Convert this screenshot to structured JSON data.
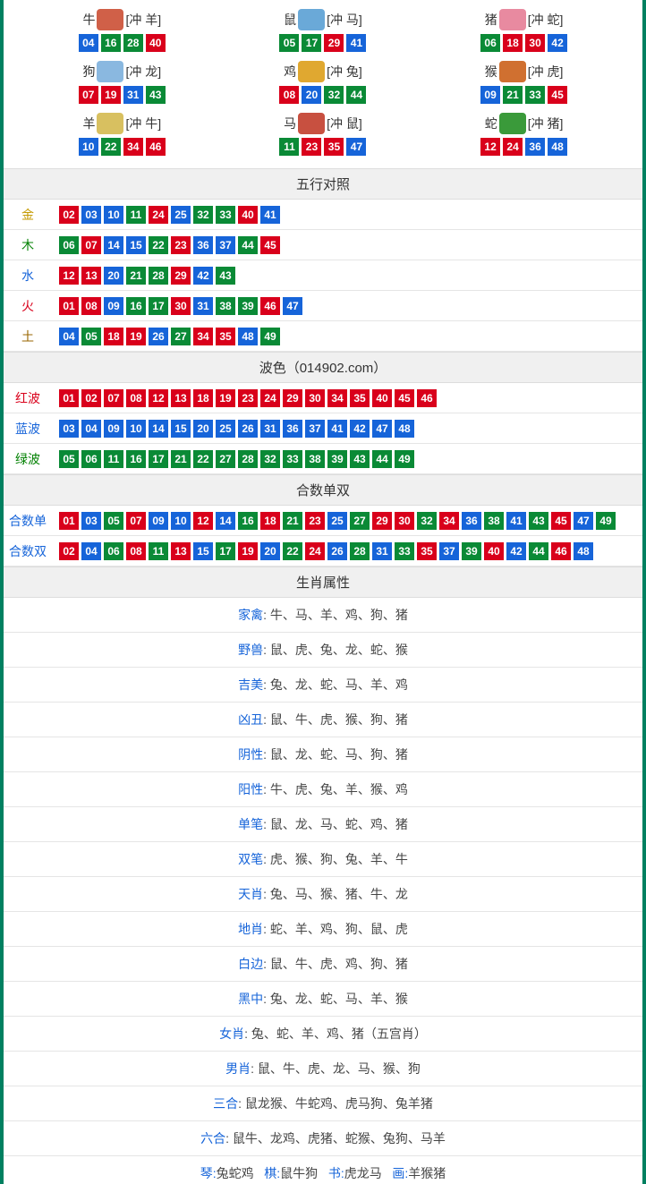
{
  "colors": {
    "red": "#d9001b",
    "green": "#0a8a36",
    "blue": "#1664d9",
    "border": "#008060",
    "label_gold": "#c49a00",
    "label_green": "#008000",
    "label_blue": "#1664d9",
    "label_red": "#d9001b",
    "label_brown": "#996600"
  },
  "zodiac_icon_colors": {
    "牛": "#d06048",
    "鼠": "#6aa9d8",
    "猪": "#e88aa0",
    "狗": "#8ab8e0",
    "鸡": "#e0a830",
    "猴": "#d07030",
    "羊": "#d8c060",
    "马": "#c85040",
    "蛇": "#3a9a3a"
  },
  "zodiac": [
    {
      "name": "牛",
      "chong": "[冲 羊]",
      "nums": [
        {
          "v": "04",
          "c": "blue"
        },
        {
          "v": "16",
          "c": "green"
        },
        {
          "v": "28",
          "c": "green"
        },
        {
          "v": "40",
          "c": "red"
        }
      ]
    },
    {
      "name": "鼠",
      "chong": "[冲 马]",
      "nums": [
        {
          "v": "05",
          "c": "green"
        },
        {
          "v": "17",
          "c": "green"
        },
        {
          "v": "29",
          "c": "red"
        },
        {
          "v": "41",
          "c": "blue"
        }
      ]
    },
    {
      "name": "猪",
      "chong": "[冲 蛇]",
      "nums": [
        {
          "v": "06",
          "c": "green"
        },
        {
          "v": "18",
          "c": "red"
        },
        {
          "v": "30",
          "c": "red"
        },
        {
          "v": "42",
          "c": "blue"
        }
      ]
    },
    {
      "name": "狗",
      "chong": "[冲 龙]",
      "nums": [
        {
          "v": "07",
          "c": "red"
        },
        {
          "v": "19",
          "c": "red"
        },
        {
          "v": "31",
          "c": "blue"
        },
        {
          "v": "43",
          "c": "green"
        }
      ]
    },
    {
      "name": "鸡",
      "chong": "[冲 兔]",
      "nums": [
        {
          "v": "08",
          "c": "red"
        },
        {
          "v": "20",
          "c": "blue"
        },
        {
          "v": "32",
          "c": "green"
        },
        {
          "v": "44",
          "c": "green"
        }
      ]
    },
    {
      "name": "猴",
      "chong": "[冲 虎]",
      "nums": [
        {
          "v": "09",
          "c": "blue"
        },
        {
          "v": "21",
          "c": "green"
        },
        {
          "v": "33",
          "c": "green"
        },
        {
          "v": "45",
          "c": "red"
        }
      ]
    },
    {
      "name": "羊",
      "chong": "[冲 牛]",
      "nums": [
        {
          "v": "10",
          "c": "blue"
        },
        {
          "v": "22",
          "c": "green"
        },
        {
          "v": "34",
          "c": "red"
        },
        {
          "v": "46",
          "c": "red"
        }
      ]
    },
    {
      "name": "马",
      "chong": "[冲 鼠]",
      "nums": [
        {
          "v": "11",
          "c": "green"
        },
        {
          "v": "23",
          "c": "red"
        },
        {
          "v": "35",
          "c": "red"
        },
        {
          "v": "47",
          "c": "blue"
        }
      ]
    },
    {
      "name": "蛇",
      "chong": "[冲 猪]",
      "nums": [
        {
          "v": "12",
          "c": "red"
        },
        {
          "v": "24",
          "c": "red"
        },
        {
          "v": "36",
          "c": "blue"
        },
        {
          "v": "48",
          "c": "blue"
        }
      ]
    }
  ],
  "sections": {
    "wuxing": {
      "title": "五行对照",
      "rows": [
        {
          "label": "金",
          "label_color": "#c49a00",
          "nums": [
            {
              "v": "02",
              "c": "red"
            },
            {
              "v": "03",
              "c": "blue"
            },
            {
              "v": "10",
              "c": "blue"
            },
            {
              "v": "11",
              "c": "green"
            },
            {
              "v": "24",
              "c": "red"
            },
            {
              "v": "25",
              "c": "blue"
            },
            {
              "v": "32",
              "c": "green"
            },
            {
              "v": "33",
              "c": "green"
            },
            {
              "v": "40",
              "c": "red"
            },
            {
              "v": "41",
              "c": "blue"
            }
          ]
        },
        {
          "label": "木",
          "label_color": "#008000",
          "nums": [
            {
              "v": "06",
              "c": "green"
            },
            {
              "v": "07",
              "c": "red"
            },
            {
              "v": "14",
              "c": "blue"
            },
            {
              "v": "15",
              "c": "blue"
            },
            {
              "v": "22",
              "c": "green"
            },
            {
              "v": "23",
              "c": "red"
            },
            {
              "v": "36",
              "c": "blue"
            },
            {
              "v": "37",
              "c": "blue"
            },
            {
              "v": "44",
              "c": "green"
            },
            {
              "v": "45",
              "c": "red"
            }
          ]
        },
        {
          "label": "水",
          "label_color": "#1664d9",
          "nums": [
            {
              "v": "12",
              "c": "red"
            },
            {
              "v": "13",
              "c": "red"
            },
            {
              "v": "20",
              "c": "blue"
            },
            {
              "v": "21",
              "c": "green"
            },
            {
              "v": "28",
              "c": "green"
            },
            {
              "v": "29",
              "c": "red"
            },
            {
              "v": "42",
              "c": "blue"
            },
            {
              "v": "43",
              "c": "green"
            }
          ]
        },
        {
          "label": "火",
          "label_color": "#d9001b",
          "nums": [
            {
              "v": "01",
              "c": "red"
            },
            {
              "v": "08",
              "c": "red"
            },
            {
              "v": "09",
              "c": "blue"
            },
            {
              "v": "16",
              "c": "green"
            },
            {
              "v": "17",
              "c": "green"
            },
            {
              "v": "30",
              "c": "red"
            },
            {
              "v": "31",
              "c": "blue"
            },
            {
              "v": "38",
              "c": "green"
            },
            {
              "v": "39",
              "c": "green"
            },
            {
              "v": "46",
              "c": "red"
            },
            {
              "v": "47",
              "c": "blue"
            }
          ]
        },
        {
          "label": "土",
          "label_color": "#996600",
          "nums": [
            {
              "v": "04",
              "c": "blue"
            },
            {
              "v": "05",
              "c": "green"
            },
            {
              "v": "18",
              "c": "red"
            },
            {
              "v": "19",
              "c": "red"
            },
            {
              "v": "26",
              "c": "blue"
            },
            {
              "v": "27",
              "c": "green"
            },
            {
              "v": "34",
              "c": "red"
            },
            {
              "v": "35",
              "c": "red"
            },
            {
              "v": "48",
              "c": "blue"
            },
            {
              "v": "49",
              "c": "green"
            }
          ]
        }
      ]
    },
    "bose": {
      "title": "波色（014902.com）",
      "rows": [
        {
          "label": "红波",
          "label_color": "#d9001b",
          "nums": [
            {
              "v": "01",
              "c": "red"
            },
            {
              "v": "02",
              "c": "red"
            },
            {
              "v": "07",
              "c": "red"
            },
            {
              "v": "08",
              "c": "red"
            },
            {
              "v": "12",
              "c": "red"
            },
            {
              "v": "13",
              "c": "red"
            },
            {
              "v": "18",
              "c": "red"
            },
            {
              "v": "19",
              "c": "red"
            },
            {
              "v": "23",
              "c": "red"
            },
            {
              "v": "24",
              "c": "red"
            },
            {
              "v": "29",
              "c": "red"
            },
            {
              "v": "30",
              "c": "red"
            },
            {
              "v": "34",
              "c": "red"
            },
            {
              "v": "35",
              "c": "red"
            },
            {
              "v": "40",
              "c": "red"
            },
            {
              "v": "45",
              "c": "red"
            },
            {
              "v": "46",
              "c": "red"
            }
          ]
        },
        {
          "label": "蓝波",
          "label_color": "#1664d9",
          "nums": [
            {
              "v": "03",
              "c": "blue"
            },
            {
              "v": "04",
              "c": "blue"
            },
            {
              "v": "09",
              "c": "blue"
            },
            {
              "v": "10",
              "c": "blue"
            },
            {
              "v": "14",
              "c": "blue"
            },
            {
              "v": "15",
              "c": "blue"
            },
            {
              "v": "20",
              "c": "blue"
            },
            {
              "v": "25",
              "c": "blue"
            },
            {
              "v": "26",
              "c": "blue"
            },
            {
              "v": "31",
              "c": "blue"
            },
            {
              "v": "36",
              "c": "blue"
            },
            {
              "v": "37",
              "c": "blue"
            },
            {
              "v": "41",
              "c": "blue"
            },
            {
              "v": "42",
              "c": "blue"
            },
            {
              "v": "47",
              "c": "blue"
            },
            {
              "v": "48",
              "c": "blue"
            }
          ]
        },
        {
          "label": "绿波",
          "label_color": "#008000",
          "nums": [
            {
              "v": "05",
              "c": "green"
            },
            {
              "v": "06",
              "c": "green"
            },
            {
              "v": "11",
              "c": "green"
            },
            {
              "v": "16",
              "c": "green"
            },
            {
              "v": "17",
              "c": "green"
            },
            {
              "v": "21",
              "c": "green"
            },
            {
              "v": "22",
              "c": "green"
            },
            {
              "v": "27",
              "c": "green"
            },
            {
              "v": "28",
              "c": "green"
            },
            {
              "v": "32",
              "c": "green"
            },
            {
              "v": "33",
              "c": "green"
            },
            {
              "v": "38",
              "c": "green"
            },
            {
              "v": "39",
              "c": "green"
            },
            {
              "v": "43",
              "c": "green"
            },
            {
              "v": "44",
              "c": "green"
            },
            {
              "v": "49",
              "c": "green"
            }
          ]
        }
      ]
    },
    "heshu": {
      "title": "合数单双",
      "rows": [
        {
          "label": "合数单",
          "label_color": "#1664d9",
          "nums": [
            {
              "v": "01",
              "c": "red"
            },
            {
              "v": "03",
              "c": "blue"
            },
            {
              "v": "05",
              "c": "green"
            },
            {
              "v": "07",
              "c": "red"
            },
            {
              "v": "09",
              "c": "blue"
            },
            {
              "v": "10",
              "c": "blue"
            },
            {
              "v": "12",
              "c": "red"
            },
            {
              "v": "14",
              "c": "blue"
            },
            {
              "v": "16",
              "c": "green"
            },
            {
              "v": "18",
              "c": "red"
            },
            {
              "v": "21",
              "c": "green"
            },
            {
              "v": "23",
              "c": "red"
            },
            {
              "v": "25",
              "c": "blue"
            },
            {
              "v": "27",
              "c": "green"
            },
            {
              "v": "29",
              "c": "red"
            },
            {
              "v": "30",
              "c": "red"
            },
            {
              "v": "32",
              "c": "green"
            },
            {
              "v": "34",
              "c": "red"
            },
            {
              "v": "36",
              "c": "blue"
            },
            {
              "v": "38",
              "c": "green"
            },
            {
              "v": "41",
              "c": "blue"
            },
            {
              "v": "43",
              "c": "green"
            },
            {
              "v": "45",
              "c": "red"
            },
            {
              "v": "47",
              "c": "blue"
            },
            {
              "v": "49",
              "c": "green"
            }
          ]
        },
        {
          "label": "合数双",
          "label_color": "#1664d9",
          "nums": [
            {
              "v": "02",
              "c": "red"
            },
            {
              "v": "04",
              "c": "blue"
            },
            {
              "v": "06",
              "c": "green"
            },
            {
              "v": "08",
              "c": "red"
            },
            {
              "v": "11",
              "c": "green"
            },
            {
              "v": "13",
              "c": "red"
            },
            {
              "v": "15",
              "c": "blue"
            },
            {
              "v": "17",
              "c": "green"
            },
            {
              "v": "19",
              "c": "red"
            },
            {
              "v": "20",
              "c": "blue"
            },
            {
              "v": "22",
              "c": "green"
            },
            {
              "v": "24",
              "c": "red"
            },
            {
              "v": "26",
              "c": "blue"
            },
            {
              "v": "28",
              "c": "green"
            },
            {
              "v": "31",
              "c": "blue"
            },
            {
              "v": "33",
              "c": "green"
            },
            {
              "v": "35",
              "c": "red"
            },
            {
              "v": "37",
              "c": "blue"
            },
            {
              "v": "39",
              "c": "green"
            },
            {
              "v": "40",
              "c": "red"
            },
            {
              "v": "42",
              "c": "blue"
            },
            {
              "v": "44",
              "c": "green"
            },
            {
              "v": "46",
              "c": "red"
            },
            {
              "v": "48",
              "c": "blue"
            }
          ]
        }
      ]
    },
    "shuxing": {
      "title": "生肖属性",
      "attrs": [
        {
          "label": "家禽",
          "val": "牛、马、羊、鸡、狗、猪"
        },
        {
          "label": "野兽",
          "val": "鼠、虎、兔、龙、蛇、猴"
        },
        {
          "label": "吉美",
          "val": "兔、龙、蛇、马、羊、鸡"
        },
        {
          "label": "凶丑",
          "val": "鼠、牛、虎、猴、狗、猪"
        },
        {
          "label": "阴性",
          "val": "鼠、龙、蛇、马、狗、猪"
        },
        {
          "label": "阳性",
          "val": "牛、虎、兔、羊、猴、鸡"
        },
        {
          "label": "单笔",
          "val": "鼠、龙、马、蛇、鸡、猪"
        },
        {
          "label": "双笔",
          "val": "虎、猴、狗、兔、羊、牛"
        },
        {
          "label": "天肖",
          "val": "兔、马、猴、猪、牛、龙"
        },
        {
          "label": "地肖",
          "val": "蛇、羊、鸡、狗、鼠、虎"
        },
        {
          "label": "白边",
          "val": "鼠、牛、虎、鸡、狗、猪"
        },
        {
          "label": "黑中",
          "val": "兔、龙、蛇、马、羊、猴"
        },
        {
          "label": "女肖",
          "val": "兔、蛇、羊、鸡、猪（五宫肖）"
        },
        {
          "label": "男肖",
          "val": "鼠、牛、虎、龙、马、猴、狗"
        },
        {
          "label": "三合",
          "val": "鼠龙猴、牛蛇鸡、虎马狗、兔羊猪"
        },
        {
          "label": "六合",
          "val": "鼠牛、龙鸡、虎猪、蛇猴、兔狗、马羊"
        }
      ],
      "bottom": [
        {
          "k": "琴",
          "v": "兔蛇鸡"
        },
        {
          "k": "棋",
          "v": "鼠牛狗"
        },
        {
          "k": "书",
          "v": "虎龙马"
        },
        {
          "k": "画",
          "v": "羊猴猪"
        }
      ]
    }
  }
}
